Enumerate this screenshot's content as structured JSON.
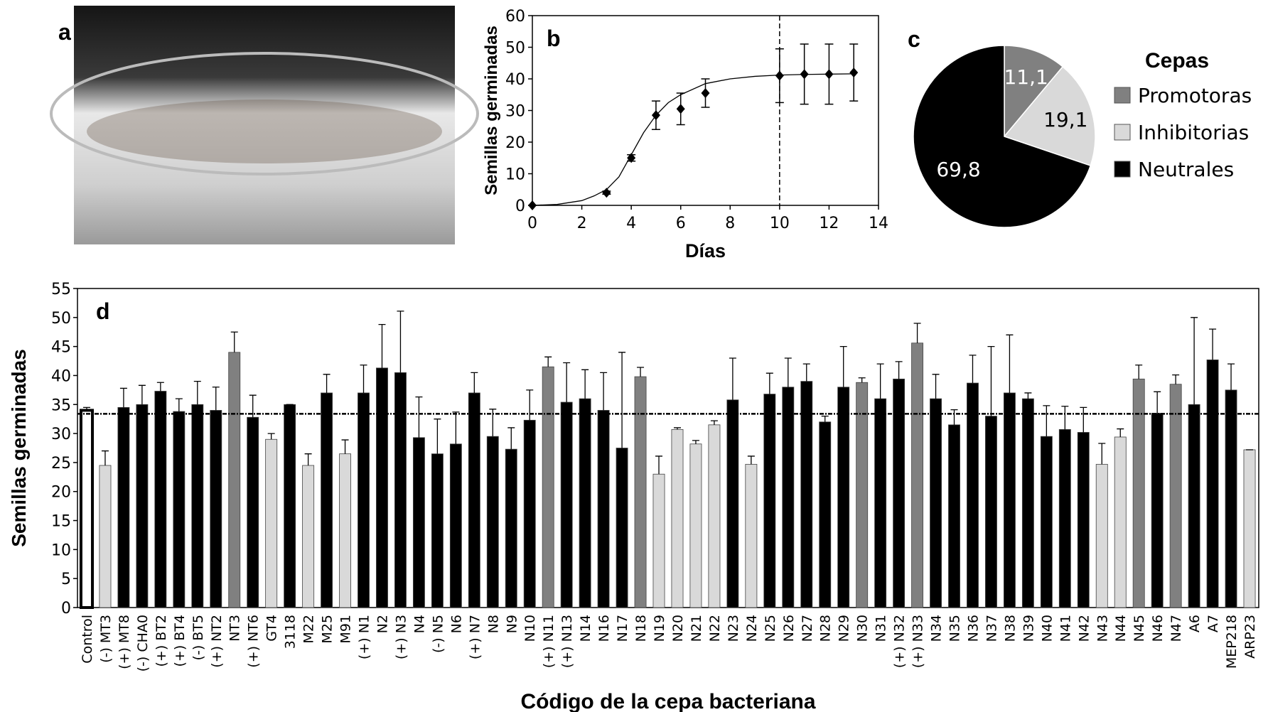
{
  "photo": {
    "panel_label": "a"
  },
  "chart_data": [
    {
      "type": "line",
      "panel_label": "b",
      "x_label": "Días",
      "y_label": "Semillas germinadas",
      "x": [
        0,
        3,
        4,
        5,
        6,
        7,
        10,
        11,
        12,
        13
      ],
      "series": [
        {
          "color": "#000000",
          "values": [
            0,
            4,
            15,
            28.5,
            30.5,
            35.5,
            41,
            41.5,
            41.5,
            42
          ],
          "errors": [
            0,
            0.5,
            1,
            4.5,
            5,
            4.5,
            8.5,
            9.5,
            9.5,
            9
          ]
        }
      ],
      "fit": {
        "x": [
          0,
          1,
          2,
          2.5,
          3,
          3.5,
          4,
          4.5,
          5,
          5.5,
          6,
          7,
          8,
          9,
          10,
          11,
          12,
          13
        ],
        "values": [
          0,
          0.3,
          1.5,
          3,
          5,
          9,
          16,
          23,
          28.5,
          32.5,
          35,
          38.5,
          40,
          40.8,
          41.2,
          41.4,
          41.5,
          41.6
        ]
      },
      "vline": 10,
      "xlim": [
        0,
        14
      ],
      "xticks": [
        0,
        2,
        4,
        6,
        8,
        10,
        12,
        14
      ],
      "ylim": [
        0,
        60
      ],
      "yticks": [
        0,
        10,
        20,
        30,
        40,
        50,
        60
      ]
    },
    {
      "type": "pie",
      "panel_label": "c",
      "legend_title": "Cepas",
      "categories": [
        "Promotoras",
        "Inhibitorias",
        "Neutrales"
      ],
      "values": [
        11.1,
        19.1,
        69.8
      ],
      "value_labels": [
        "11,1",
        "19,1",
        "69,8"
      ],
      "colors": [
        "#808080",
        "#d9d9d9",
        "#000000"
      ]
    },
    {
      "type": "bar",
      "panel_label": "d",
      "x_label": "Código de la cepa bacteriana",
      "y_label": "Semillas germinadas",
      "categories": [
        "Control",
        "(-) MT3",
        "(+) MT8",
        "(-) CHA0",
        "(+) BT2",
        "(+) BT4",
        "(-) BT5",
        "(+) NT2",
        "NT3",
        "(+) NT6",
        "GT4",
        "3118",
        "M22",
        "M25",
        "M91",
        "(+) N1",
        "N2",
        "(+) N3",
        "N4",
        "(-) N5",
        "N6",
        "(+) N7",
        "N8",
        "N9",
        "N10",
        "(+) N11",
        "(+) N13",
        "N14",
        "N16",
        "N17",
        "N18",
        "N19",
        "N20",
        "N21",
        "N22",
        "N23",
        "N24",
        "N25",
        "N26",
        "N27",
        "N28",
        "N29",
        "N30",
        "N31",
        "(+) N32",
        "(+) N33",
        "N34",
        "N35",
        "N36",
        "N37",
        "N38",
        "N39",
        "N40",
        "N41",
        "N42",
        "N43",
        "N44",
        "N45",
        "N46",
        "N47",
        "A6",
        "A7",
        "MEP218",
        "ARP23"
      ],
      "values": [
        34,
        24.5,
        34.5,
        35,
        37.3,
        33.8,
        35,
        34,
        44,
        32.8,
        29,
        35,
        24.5,
        37,
        26.5,
        37,
        41.3,
        40.5,
        29.3,
        26.5,
        28.2,
        37,
        29.5,
        27.3,
        32.3,
        41.5,
        35.4,
        36,
        34,
        27.5,
        39.8,
        23,
        30.7,
        28.2,
        31.5,
        35.8,
        24.7,
        36.8,
        38,
        39,
        32,
        38,
        38.8,
        36,
        39.4,
        45.6,
        36,
        31.5,
        38.7,
        33,
        37,
        36,
        29.5,
        30.7,
        30.2,
        24.7,
        29.4,
        39.4,
        33.5,
        38.5,
        35,
        42.7,
        37.5,
        27.2
      ],
      "errors": [
        0.5,
        2.5,
        3.3,
        3.3,
        1.5,
        2.2,
        4,
        4,
        3.5,
        3.8,
        1,
        0,
        2,
        3.2,
        2.4,
        4.8,
        7.5,
        10.6,
        7,
        6,
        5.5,
        3.5,
        4.7,
        3.7,
        5.2,
        1.7,
        6.8,
        5,
        6.5,
        16.5,
        1.6,
        3.1,
        0.3,
        0.6,
        0.7,
        7.2,
        1.4,
        3.6,
        5,
        3,
        1,
        7,
        0.8,
        6,
        3,
        3.4,
        4.2,
        2.6,
        4.8,
        12,
        10,
        1,
        5.3,
        4,
        4.3,
        3.6,
        1.4,
        2.4,
        3.7,
        1.6,
        15,
        5.3,
        4.5,
        0
      ],
      "colors": [
        "#ffffff",
        "#d9d9d9",
        "#000000",
        "#000000",
        "#000000",
        "#000000",
        "#000000",
        "#000000",
        "#808080",
        "#000000",
        "#d9d9d9",
        "#000000",
        "#d9d9d9",
        "#000000",
        "#d9d9d9",
        "#000000",
        "#000000",
        "#000000",
        "#000000",
        "#000000",
        "#000000",
        "#000000",
        "#000000",
        "#000000",
        "#000000",
        "#808080",
        "#000000",
        "#000000",
        "#000000",
        "#000000",
        "#808080",
        "#d9d9d9",
        "#d9d9d9",
        "#d9d9d9",
        "#d9d9d9",
        "#000000",
        "#d9d9d9",
        "#000000",
        "#000000",
        "#000000",
        "#000000",
        "#000000",
        "#808080",
        "#000000",
        "#000000",
        "#808080",
        "#000000",
        "#000000",
        "#000000",
        "#000000",
        "#000000",
        "#000000",
        "#000000",
        "#000000",
        "#000000",
        "#d9d9d9",
        "#d9d9d9",
        "#808080",
        "#000000",
        "#808080",
        "#000000",
        "#000000",
        "#000000",
        "#d9d9d9"
      ],
      "hline": 33.4,
      "ylim": [
        0,
        55
      ],
      "yticks": [
        0,
        5,
        10,
        15,
        20,
        25,
        30,
        35,
        40,
        45,
        50,
        55
      ]
    }
  ]
}
